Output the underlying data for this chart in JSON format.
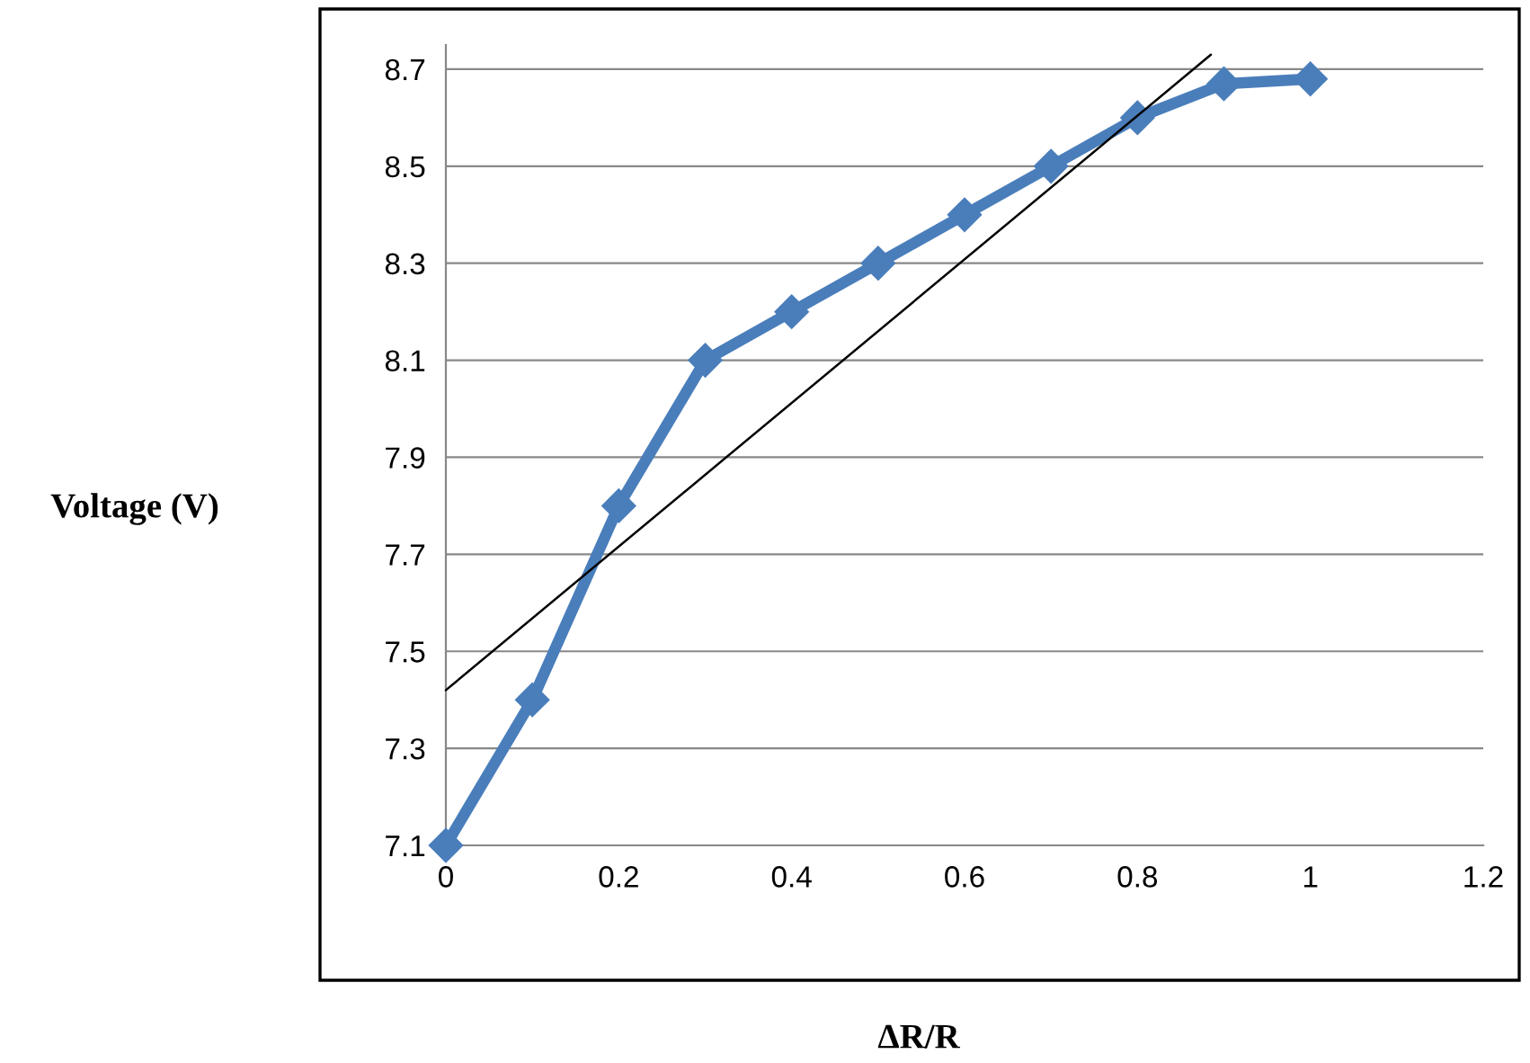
{
  "chart_data": {
    "type": "line",
    "xlabel": "ΔR/R",
    "ylabel": "Voltage (V)",
    "x": [
      0,
      0.1,
      0.2,
      0.3,
      0.4,
      0.5,
      0.6,
      0.7,
      0.8,
      0.9,
      1
    ],
    "series": [
      {
        "color": "#4a7ebb",
        "values": [
          7.1,
          7.4,
          7.8,
          8.1,
          8.2,
          8.3,
          8.4,
          8.5,
          8.6,
          8.67,
          8.68
        ],
        "marker": "diamond"
      },
      {
        "type": "line",
        "color": "#000000",
        "x": [
          0,
          0.885
        ],
        "values": [
          7.42,
          8.73
        ],
        "marker": "none"
      }
    ],
    "xlim": [
      0,
      1.2
    ],
    "xticks": [
      0,
      0.2,
      0.4,
      0.6,
      0.8,
      1,
      1.2
    ],
    "ylim": [
      7.1,
      8.75
    ],
    "yticks": [
      7.1,
      7.3,
      7.5,
      7.7,
      7.9,
      8.1,
      8.3,
      8.5,
      8.7
    ],
    "grid": "y"
  }
}
